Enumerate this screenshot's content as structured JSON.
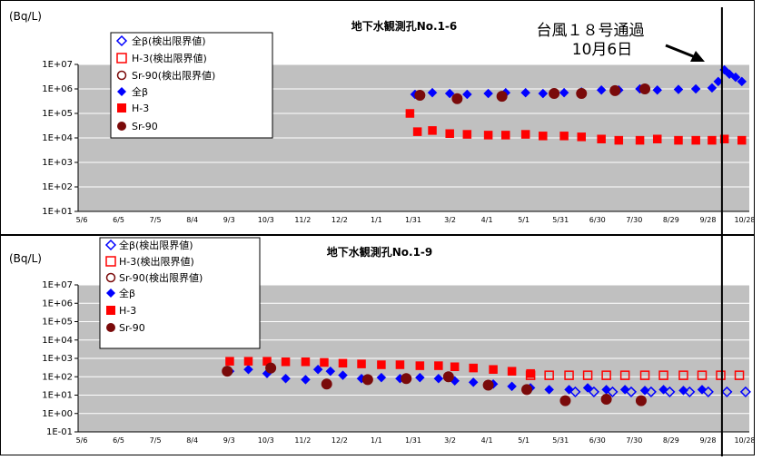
{
  "annotation": {
    "line1": "台風１８号通過",
    "line2": "10月6日"
  },
  "x_ticks": [
    "5/6",
    "6/5",
    "7/5",
    "8/4",
    "9/3",
    "10/3",
    "11/2",
    "12/2",
    "1/1",
    "1/31",
    "3/2",
    "4/1",
    "5/1",
    "5/31",
    "6/30",
    "7/30",
    "8/29",
    "9/28",
    "10/28"
  ],
  "legend_labels": {
    "beta_dl": "全β(検出限界値)",
    "h3_dl": "H-3(検出限界値)",
    "sr_dl": "Sr-90(検出限界値)",
    "beta": "全β",
    "h3": "H-3",
    "sr": "Sr-90"
  },
  "colors": {
    "beta": "#0000ff",
    "h3": "#ff0000",
    "sr": "#7a0a0a",
    "plot_bg": "#c0c0c0",
    "grid": "#ffffff"
  },
  "chart_data": [
    {
      "type": "scatter",
      "title": "地下水観測孔No.1-6",
      "ylabel": "(Bq/L)",
      "y_scale": "log",
      "ylim": [
        "1E+01",
        "1E+07"
      ],
      "y_ticks": [
        "1E+07",
        "1E+06",
        "1E+05",
        "1E+04",
        "1E+03",
        "1E+02",
        "1E+01"
      ],
      "x_ticks": [
        "5/6",
        "6/5",
        "7/5",
        "8/4",
        "9/3",
        "10/3",
        "11/2",
        "12/2",
        "1/1",
        "1/31",
        "3/2",
        "4/1",
        "5/1",
        "5/31",
        "6/30",
        "7/30",
        "8/29",
        "9/28",
        "10/28"
      ],
      "series": [
        {
          "name": "全β",
          "marker": "diamond-filled",
          "color": "#0000ff",
          "x": [
            "2013-02-01",
            "2013-02-15",
            "2013-03-01",
            "2013-03-15",
            "2013-04-01",
            "2013-04-15",
            "2013-05-01",
            "2013-05-15",
            "2013-06-01",
            "2013-06-15",
            "2013-07-01",
            "2013-07-15",
            "2013-08-01",
            "2013-08-15",
            "2013-09-01",
            "2013-09-15",
            "2013-09-28",
            "2013-10-03",
            "2013-10-08",
            "2013-10-12",
            "2013-10-17",
            "2013-10-22"
          ],
          "y": [
            600000,
            700000,
            650000,
            600000,
            650000,
            700000,
            700000,
            650000,
            700000,
            750000,
            900000,
            900000,
            1000000,
            900000,
            950000,
            1000000,
            1100000,
            2000000,
            6000000,
            4000000,
            3000000,
            2000000
          ]
        },
        {
          "name": "H-3",
          "marker": "square-filled",
          "color": "#ff0000",
          "x": [
            "2013-01-28",
            "2013-02-03",
            "2013-02-15",
            "2013-03-01",
            "2013-03-15",
            "2013-04-01",
            "2013-04-15",
            "2013-05-01",
            "2013-05-15",
            "2013-06-01",
            "2013-06-15",
            "2013-07-01",
            "2013-07-15",
            "2013-08-01",
            "2013-08-15",
            "2013-09-01",
            "2013-09-15",
            "2013-09-28",
            "2013-10-08",
            "2013-10-22"
          ],
          "y": [
            100000,
            18000,
            20000,
            15000,
            14000,
            13000,
            13000,
            14000,
            12000,
            12000,
            11000,
            9000,
            8000,
            8000,
            9000,
            8000,
            8000,
            8000,
            9000,
            8000
          ]
        },
        {
          "name": "Sr-90",
          "marker": "circle-filled",
          "color": "#7a0a0a",
          "x": [
            "2013-02-05",
            "2013-03-07",
            "2013-04-12",
            "2013-05-24",
            "2013-06-15",
            "2013-07-12",
            "2013-08-05"
          ],
          "y": [
            550000,
            400000,
            500000,
            650000,
            650000,
            850000,
            1000000
          ]
        }
      ]
    },
    {
      "type": "scatter",
      "title": "地下水観測孔No.1-9",
      "ylabel": "(Bq/L)",
      "y_scale": "log",
      "ylim": [
        "1E-01",
        "1E+07"
      ],
      "y_ticks": [
        "1E+07",
        "1E+06",
        "1E+05",
        "1E+04",
        "1E+03",
        "1E+02",
        "1E+01",
        "1E+00",
        "1E-01"
      ],
      "x_ticks": [
        "5/6",
        "6/5",
        "7/5",
        "8/4",
        "9/3",
        "10/3",
        "11/2",
        "12/2",
        "1/1",
        "1/31",
        "3/2",
        "4/1",
        "5/1",
        "5/31",
        "6/30",
        "7/30",
        "8/29",
        "9/28",
        "10/28"
      ],
      "series": [
        {
          "name": "全β",
          "marker": "diamond-filled",
          "color": "#0000ff",
          "x": [
            "2012-09-05",
            "2012-09-20",
            "2012-10-05",
            "2012-10-20",
            "2012-11-05",
            "2012-11-15",
            "2012-11-25",
            "2012-12-05",
            "2012-12-20",
            "2013-01-05",
            "2013-01-20",
            "2013-02-05",
            "2013-02-20",
            "2013-03-05",
            "2013-03-20",
            "2013-04-05",
            "2013-04-20",
            "2013-05-05",
            "2013-05-20",
            "2013-06-05",
            "2013-06-20",
            "2013-07-05",
            "2013-07-20",
            "2013-08-05",
            "2013-08-20",
            "2013-09-05",
            "2013-09-20"
          ],
          "y": [
            200,
            250,
            150,
            80,
            70,
            250,
            200,
            120,
            80,
            90,
            80,
            90,
            80,
            60,
            50,
            40,
            30,
            25,
            20,
            20,
            25,
            20,
            20,
            18,
            20,
            18,
            20
          ]
        },
        {
          "name": "H-3",
          "marker": "square-filled",
          "color": "#ff0000",
          "x": [
            "2012-09-05",
            "2012-09-20",
            "2012-10-05",
            "2012-10-20",
            "2012-11-05",
            "2012-11-20",
            "2012-12-05",
            "2012-12-20",
            "2013-01-05",
            "2013-01-20",
            "2013-02-05",
            "2013-02-20",
            "2013-03-05",
            "2013-03-20",
            "2013-04-05",
            "2013-04-20",
            "2013-05-05"
          ],
          "y": [
            700,
            700,
            700,
            650,
            650,
            600,
            550,
            500,
            450,
            450,
            400,
            400,
            350,
            300,
            250,
            200,
            150
          ]
        },
        {
          "name": "Sr-90",
          "marker": "circle-filled",
          "color": "#7a0a0a",
          "x": [
            "2012-09-03",
            "2012-10-08",
            "2012-11-22",
            "2012-12-25",
            "2013-01-25",
            "2013-02-28",
            "2013-04-01",
            "2013-05-02",
            "2013-06-02",
            "2013-07-05",
            "2013-08-02"
          ],
          "y": [
            200,
            300,
            40,
            70,
            80,
            100,
            35,
            20,
            5,
            6,
            5
          ]
        },
        {
          "name": "H-3(検出限界値)",
          "marker": "square-open",
          "color": "#ff0000",
          "x": [
            "2013-05-05",
            "2013-05-20",
            "2013-06-05",
            "2013-06-20",
            "2013-07-05",
            "2013-07-20",
            "2013-08-05",
            "2013-08-20",
            "2013-09-05",
            "2013-09-20",
            "2013-10-05",
            "2013-10-20"
          ],
          "y": [
            120,
            120,
            120,
            120,
            120,
            120,
            120,
            120,
            120,
            120,
            120,
            120
          ]
        },
        {
          "name": "全β(検出限界値)",
          "marker": "diamond-open",
          "color": "#0000ff",
          "x": [
            "2013-06-10",
            "2013-06-25",
            "2013-07-10",
            "2013-07-25",
            "2013-08-10",
            "2013-08-25",
            "2013-09-10",
            "2013-09-25",
            "2013-10-10",
            "2013-10-25"
          ],
          "y": [
            15,
            15,
            15,
            15,
            15,
            15,
            15,
            15,
            15,
            15
          ]
        }
      ]
    }
  ]
}
